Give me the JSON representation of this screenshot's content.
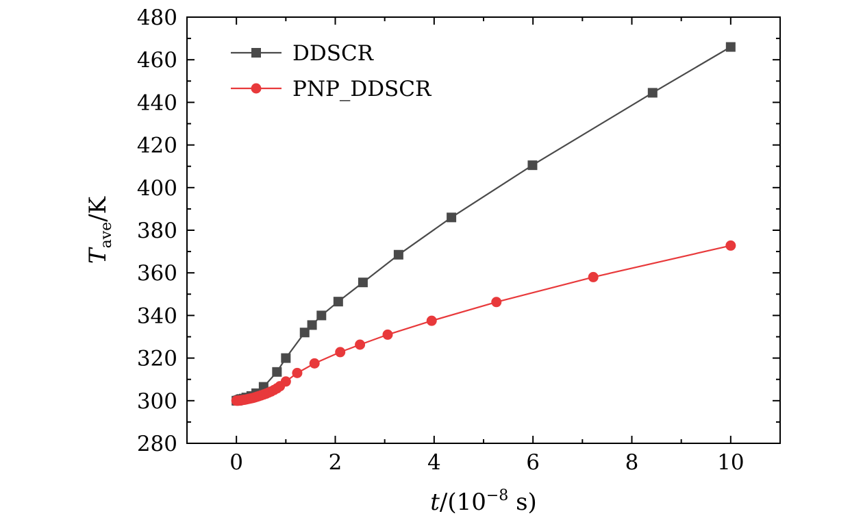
{
  "chart_data": {
    "type": "line",
    "title": "",
    "xlabel": "t/(10⁻⁸ s)",
    "ylabel": "T_ave/K",
    "xlabel_parts": {
      "var": "t",
      "open": "/(10",
      "exp": "−8",
      "close": " s)"
    },
    "ylabel_parts": {
      "var": "T",
      "sub": "ave",
      "rest": "/K"
    },
    "xlim": [
      -1,
      11
    ],
    "ylim": [
      280,
      480
    ],
    "xticks": [
      0,
      2,
      4,
      6,
      8,
      10
    ],
    "xtick_labels": [
      "0",
      "2",
      "4",
      "6",
      "8",
      "10"
    ],
    "yticks": [
      280,
      300,
      320,
      340,
      360,
      380,
      400,
      420,
      440,
      460,
      480
    ],
    "ytick_labels": [
      "280",
      "300",
      "320",
      "340",
      "360",
      "380",
      "400",
      "420",
      "440",
      "460",
      "480"
    ],
    "grid": false,
    "legend_position": "top-left",
    "series": [
      {
        "name": "DDSCR",
        "color": "#4a4a4a",
        "marker": "square",
        "x": [
          0,
          0.02,
          0.04,
          0.06,
          0.08,
          0.1,
          0.15,
          0.2,
          0.3,
          0.4,
          0.55,
          0.82,
          1.0,
          1.38,
          1.53,
          1.72,
          2.06,
          2.56,
          3.28,
          4.35,
          5.99,
          8.42,
          10.0
        ],
        "y": [
          300,
          300,
          300.2,
          300.4,
          300.6,
          300.8,
          301,
          301.5,
          302.2,
          303.5,
          306.5,
          313.5,
          320,
          332,
          335.5,
          340,
          346.5,
          355.5,
          368.5,
          386,
          410.5,
          444.5,
          466
        ]
      },
      {
        "name": "PNP_DDSCR",
        "color": "#e8393b",
        "marker": "circle",
        "x": [
          0,
          0.02,
          0.04,
          0.06,
          0.08,
          0.1,
          0.12,
          0.15,
          0.18,
          0.22,
          0.26,
          0.3,
          0.34,
          0.38,
          0.42,
          0.46,
          0.5,
          0.55,
          0.6,
          0.65,
          0.7,
          0.76,
          0.82,
          0.88,
          1.0,
          1.23,
          1.58,
          2.1,
          2.5,
          3.06,
          3.95,
          5.26,
          7.22,
          10.0
        ],
        "y": [
          300,
          300,
          300,
          300.1,
          300.1,
          300.2,
          300.3,
          300.4,
          300.5,
          300.7,
          300.9,
          301.1,
          301.3,
          301.6,
          301.9,
          302.2,
          302.5,
          302.9,
          303.3,
          303.8,
          304.3,
          305,
          305.8,
          306.8,
          309,
          313,
          317.5,
          322.8,
          326.3,
          331,
          337.5,
          346.3,
          358,
          372.8
        ]
      }
    ]
  }
}
